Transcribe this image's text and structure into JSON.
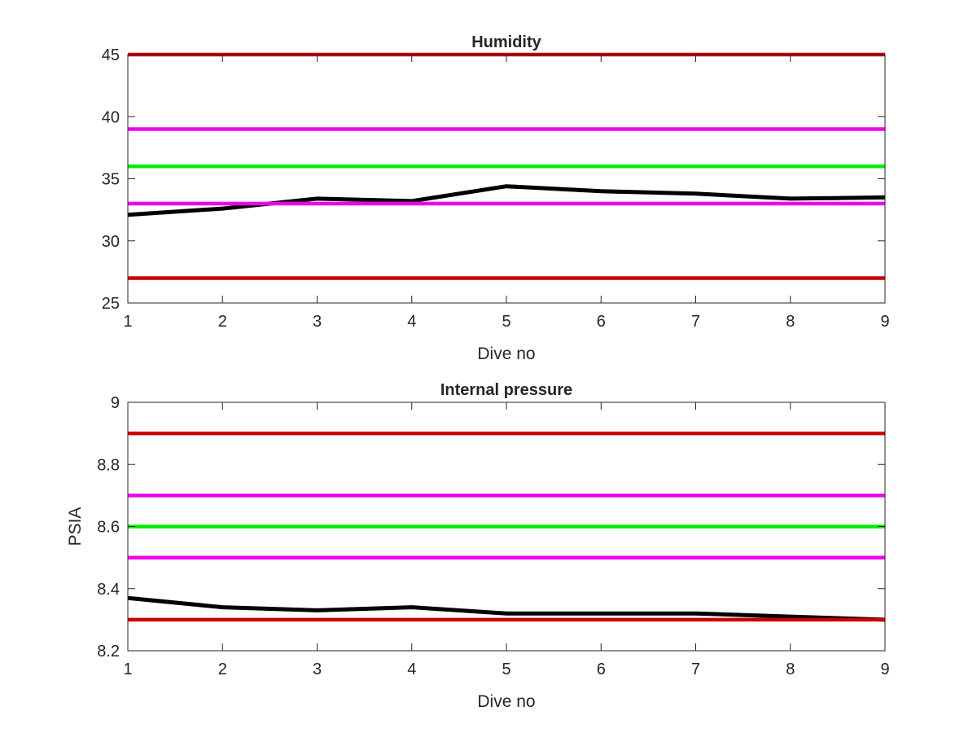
{
  "colors": {
    "red": "#cc0000",
    "magenta": "#ee00ee",
    "green": "#00ee00",
    "black": "#000000",
    "axis": "#262626"
  },
  "chart_data": [
    {
      "type": "line",
      "title": "Humidity",
      "xlabel": "Dive no",
      "ylabel": "",
      "xlim": [
        1,
        9
      ],
      "ylim": [
        25,
        45
      ],
      "xticks": [
        "1",
        "2",
        "3",
        "4",
        "5",
        "6",
        "7",
        "8",
        "9"
      ],
      "yticks": [
        "25",
        "30",
        "35",
        "40",
        "45"
      ],
      "grid": false,
      "series": [
        {
          "color": "black",
          "x": [
            1,
            2,
            3,
            4,
            5,
            6,
            7,
            8,
            9
          ],
          "values": [
            32.1,
            32.6,
            33.4,
            33.2,
            34.4,
            34.0,
            33.8,
            33.4,
            33.5
          ]
        },
        {
          "color": "red",
          "x": [
            1,
            9
          ],
          "values": [
            45,
            45
          ]
        },
        {
          "color": "magenta",
          "x": [
            1,
            9
          ],
          "values": [
            39,
            39
          ]
        },
        {
          "color": "green",
          "x": [
            1,
            9
          ],
          "values": [
            36,
            36
          ]
        },
        {
          "color": "magenta",
          "x": [
            1,
            9
          ],
          "values": [
            33,
            33
          ]
        },
        {
          "color": "red",
          "x": [
            1,
            9
          ],
          "values": [
            27,
            27
          ]
        }
      ]
    },
    {
      "type": "line",
      "title": "Internal pressure",
      "xlabel": "Dive no",
      "ylabel": "PSIA",
      "xlim": [
        1,
        9
      ],
      "ylim": [
        8.2,
        9
      ],
      "xticks": [
        "1",
        "2",
        "3",
        "4",
        "5",
        "6",
        "7",
        "8",
        "9"
      ],
      "yticks": [
        "8.2",
        "8.4",
        "8.6",
        "8.8",
        "9"
      ],
      "grid": false,
      "series": [
        {
          "color": "black",
          "x": [
            1,
            2,
            3,
            4,
            5,
            6,
            7,
            8,
            9
          ],
          "values": [
            8.37,
            8.34,
            8.33,
            8.34,
            8.32,
            8.32,
            8.32,
            8.31,
            8.3
          ]
        },
        {
          "color": "red",
          "x": [
            1,
            9
          ],
          "values": [
            8.9,
            8.9
          ]
        },
        {
          "color": "magenta",
          "x": [
            1,
            9
          ],
          "values": [
            8.7,
            8.7
          ]
        },
        {
          "color": "green",
          "x": [
            1,
            9
          ],
          "values": [
            8.6,
            8.6
          ]
        },
        {
          "color": "magenta",
          "x": [
            1,
            9
          ],
          "values": [
            8.5,
            8.5
          ]
        },
        {
          "color": "red",
          "x": [
            1,
            9
          ],
          "values": [
            8.3,
            8.3
          ]
        }
      ]
    }
  ]
}
